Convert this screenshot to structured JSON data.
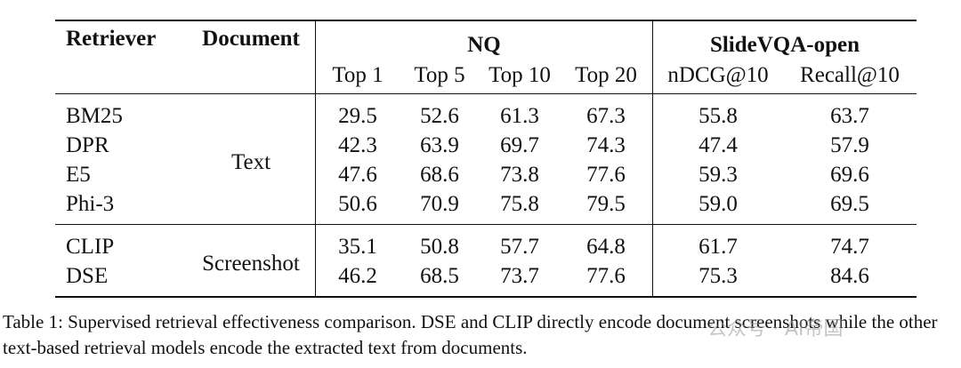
{
  "table": {
    "headers": {
      "retriever": "Retriever",
      "document": "Document",
      "nq": "NQ",
      "slidevqa": "SlideVQA-open",
      "nq_sub": [
        "Top 1",
        "Top 5",
        "Top 10",
        "Top 20"
      ],
      "slidevqa_sub": [
        "nDCG@10",
        "Recall@10"
      ]
    },
    "groups": [
      {
        "document": "Text",
        "rows": [
          {
            "retriever": "BM25",
            "values": [
              "29.5",
              "52.6",
              "61.3",
              "67.3",
              "55.8",
              "63.7"
            ]
          },
          {
            "retriever": "DPR",
            "values": [
              "42.3",
              "63.9",
              "69.7",
              "74.3",
              "47.4",
              "57.9"
            ]
          },
          {
            "retriever": "E5",
            "values": [
              "47.6",
              "68.6",
              "73.8",
              "77.6",
              "59.3",
              "69.6"
            ]
          },
          {
            "retriever": "Phi-3",
            "values": [
              "50.6",
              "70.9",
              "75.8",
              "79.5",
              "59.0",
              "69.5"
            ]
          }
        ]
      },
      {
        "document": "Screenshot",
        "rows": [
          {
            "retriever": "CLIP",
            "values": [
              "35.1",
              "50.8",
              "57.7",
              "64.8",
              "61.7",
              "74.7"
            ]
          },
          {
            "retriever": "DSE",
            "values": [
              "46.2",
              "68.5",
              "73.7",
              "77.6",
              "75.3",
              "84.6"
            ]
          }
        ]
      }
    ]
  },
  "caption": "Table 1: Supervised retrieval effectiveness comparison. DSE and CLIP directly encode document screenshots while the other text-based retrieval models encode the extracted text from documents.",
  "watermark": "公众号 · AI帝国"
}
